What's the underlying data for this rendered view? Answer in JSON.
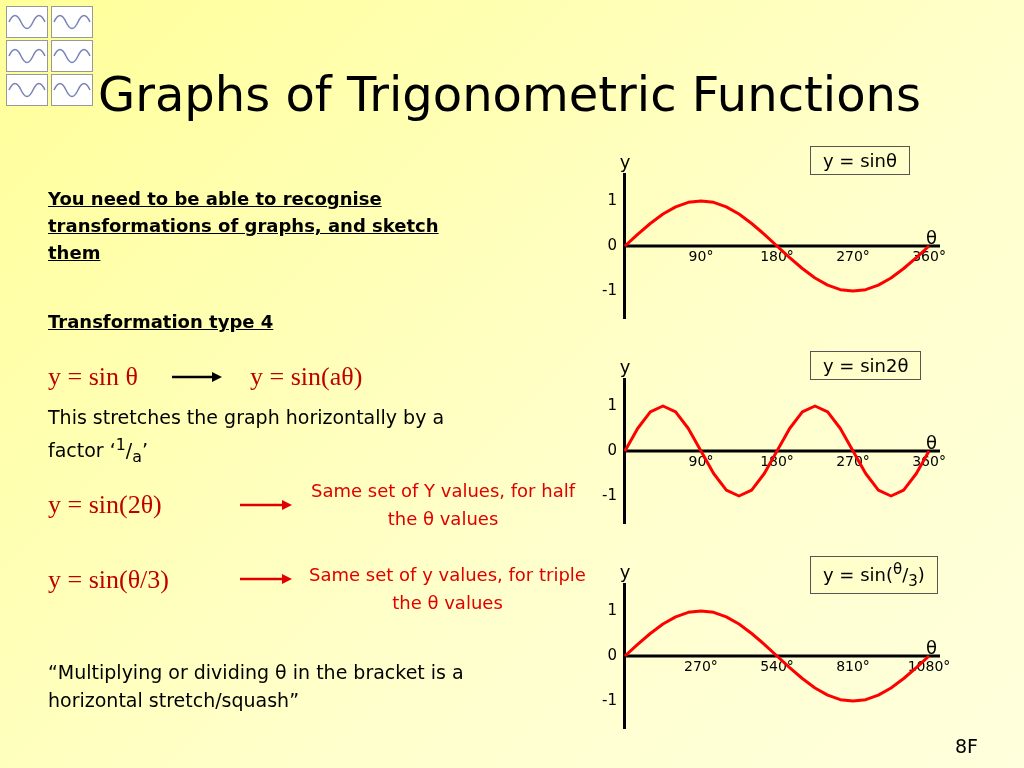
{
  "chart_data": [
    {
      "type": "other",
      "title": "Graphs of Trigonometric Functions",
      "annotations": [
        "You need to be able to recognise transformations of graphs, and sketch them",
        "Transformation type 4",
        "y = sin θ",
        "y = sin(aθ)",
        "This stretches the graph horizontally by a factor ‘$^{1}$/$_{a}$’",
        "y = sin(2θ)",
        "Same set of Y values, for half the θ values",
        "y = sin(θ/3)",
        "Same set of y values, for triple the θ values",
        "“Multiplying or dividing θ in the bracket is a horizontal stretch/squash”",
        "8F"
      ]
    },
    {
      "type": "line",
      "title": "y = sinθ",
      "xlabel": "θ",
      "ylabel": "y",
      "x": [
        0,
        15,
        30,
        45,
        60,
        75,
        90,
        105,
        120,
        135,
        150,
        165,
        180,
        195,
        210,
        225,
        240,
        255,
        270,
        285,
        300,
        315,
        330,
        345,
        360
      ],
      "xlim": [
        0,
        373
      ],
      "ylim": [
        -1.6,
        1.6
      ],
      "xticks": [
        {
          "value": 90,
          "label": "90°"
        },
        {
          "value": 180,
          "label": "180°"
        },
        {
          "value": 270,
          "label": "270°"
        },
        {
          "value": 360,
          "label": "360°"
        }
      ],
      "yticks": [
        -1,
        0,
        1
      ],
      "series": [
        {
          "color": "#ff0000",
          "values": [
            0,
            0.26,
            0.5,
            0.71,
            0.87,
            0.97,
            1,
            0.97,
            0.87,
            0.71,
            0.5,
            0.26,
            0,
            -0.26,
            -0.5,
            -0.71,
            -0.87,
            -0.97,
            -1,
            -0.97,
            -0.87,
            -0.71,
            -0.5,
            -0.26,
            0
          ]
        }
      ]
    },
    {
      "type": "line",
      "title": "y = sin2θ",
      "xlabel": "θ",
      "ylabel": "y",
      "x": [
        0,
        15,
        30,
        45,
        60,
        75,
        90,
        105,
        120,
        135,
        150,
        165,
        180,
        195,
        210,
        225,
        240,
        255,
        270,
        285,
        300,
        315,
        330,
        345,
        360
      ],
      "xlim": [
        0,
        373
      ],
      "ylim": [
        -1.6,
        1.6
      ],
      "xticks": [
        {
          "value": 90,
          "label": "90°"
        },
        {
          "value": 180,
          "label": "180°"
        },
        {
          "value": 270,
          "label": "270°"
        },
        {
          "value": 360,
          "label": "360°"
        }
      ],
      "yticks": [
        -1,
        0,
        1
      ],
      "series": [
        {
          "color": "#ff0000",
          "values": [
            0,
            0.5,
            0.87,
            1,
            0.87,
            0.5,
            0,
            -0.5,
            -0.87,
            -1,
            -0.87,
            -0.5,
            0,
            0.5,
            0.87,
            1,
            0.87,
            0.5,
            0,
            -0.5,
            -0.87,
            -1,
            -0.87,
            -0.5,
            0
          ]
        }
      ]
    },
    {
      "type": "line",
      "title": "y = sin($^{θ}$/$_{3}$)",
      "xlabel": "θ",
      "ylabel": "y",
      "x": [
        0,
        45,
        90,
        135,
        180,
        225,
        270,
        315,
        360,
        405,
        450,
        495,
        540,
        585,
        630,
        675,
        720,
        765,
        810,
        855,
        900,
        945,
        990,
        1035,
        1080
      ],
      "xlim": [
        0,
        1119
      ],
      "ylim": [
        -1.6,
        1.6
      ],
      "xticks": [
        {
          "value": 270,
          "label": "270°"
        },
        {
          "value": 540,
          "label": "540°"
        },
        {
          "value": 810,
          "label": "810°"
        },
        {
          "value": 1080,
          "label": "1080°"
        }
      ],
      "yticks": [
        -1,
        0,
        1
      ],
      "series": [
        {
          "color": "#ff0000",
          "values": [
            0,
            0.26,
            0.5,
            0.71,
            0.87,
            0.97,
            1,
            0.97,
            0.87,
            0.71,
            0.5,
            0.26,
            0,
            -0.26,
            -0.5,
            -0.71,
            -0.87,
            -0.97,
            -1,
            -0.97,
            -0.87,
            -0.71,
            -0.5,
            -0.26,
            0
          ]
        }
      ]
    }
  ]
}
